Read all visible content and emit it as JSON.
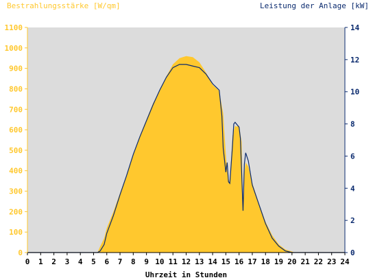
{
  "chart_data": {
    "type": "area",
    "title": "",
    "left_axis_label": "Bestrahlungsstärke [W/qm]",
    "right_axis_label": "Leistung der Anlage [kW]",
    "xlabel": "Uhrzeit in Stunden",
    "xlim": [
      0,
      24
    ],
    "x_ticks": [
      "0",
      "1",
      "2",
      "3",
      "4",
      "5",
      "6",
      "7",
      "8",
      "9",
      "10",
      "11",
      "12",
      "13",
      "14",
      "15",
      "16",
      "17",
      "18",
      "19",
      "20",
      "21",
      "22",
      "23",
      "24"
    ],
    "ylim_left": [
      0,
      1100
    ],
    "ylim_right": [
      0,
      14
    ],
    "y_ticks_left": [
      "0",
      "100",
      "200",
      "300",
      "400",
      "500",
      "600",
      "700",
      "800",
      "900",
      "1000",
      "1100"
    ],
    "y_ticks_right": [
      "0",
      "2",
      "4",
      "6",
      "8",
      "10",
      "12",
      "14"
    ],
    "grid": false,
    "colors": {
      "irradiance": "#FFC82E",
      "power": "#0A2A6E",
      "plot_background": "#DCDCDC",
      "left_axis": "#FFC82E",
      "right_axis": "#0A2A6E"
    },
    "series": [
      {
        "axis": "left",
        "style": "filled-area",
        "x": [
          5.3,
          5.5,
          5.8,
          6,
          6.5,
          7,
          7.5,
          8,
          8.5,
          9,
          9.5,
          10,
          10.5,
          11,
          11.5,
          12,
          12.5,
          13,
          13.5,
          14,
          14.5,
          14.8,
          15,
          15.1,
          15.2,
          15.3,
          15.5,
          15.7,
          15.8,
          16,
          16.2,
          16.3,
          16.4,
          16.5,
          16.7,
          17,
          17.5,
          18,
          18.5,
          19,
          19.5,
          20,
          20.2
        ],
        "values": [
          0,
          30,
          70,
          120,
          200,
          290,
          380,
          480,
          570,
          650,
          730,
          790,
          860,
          920,
          950,
          960,
          955,
          930,
          880,
          820,
          790,
          680,
          480,
          400,
          360,
          340,
          570,
          620,
          615,
          620,
          540,
          210,
          390,
          440,
          420,
          340,
          240,
          150,
          85,
          40,
          15,
          5,
          0
        ]
      },
      {
        "axis": "right",
        "style": "line",
        "x": [
          5.3,
          5.5,
          5.8,
          6,
          6.5,
          7,
          7.5,
          8,
          8.5,
          9,
          9.5,
          10,
          10.5,
          11,
          11.5,
          12,
          12.5,
          13,
          13.5,
          14,
          14.5,
          14.7,
          14.8,
          15,
          15.1,
          15.2,
          15.3,
          15.5,
          15.6,
          15.7,
          16,
          16.1,
          16.3,
          16.4,
          16.5,
          16.7,
          17,
          17.5,
          18,
          18.5,
          19,
          19.5,
          20,
          20.3
        ],
        "values": [
          0,
          0.1,
          0.5,
          1.2,
          2.3,
          3.6,
          4.8,
          6.1,
          7.2,
          8.2,
          9.2,
          10.1,
          10.9,
          11.5,
          11.7,
          11.7,
          11.6,
          11.5,
          11.1,
          10.5,
          10.1,
          8.5,
          6.5,
          5.0,
          5.6,
          4.4,
          4.3,
          6.6,
          8.0,
          8.1,
          7.8,
          7.1,
          2.6,
          5.5,
          6.2,
          5.7,
          4.2,
          3.0,
          1.8,
          0.9,
          0.4,
          0.1,
          0,
          0
        ]
      }
    ]
  }
}
